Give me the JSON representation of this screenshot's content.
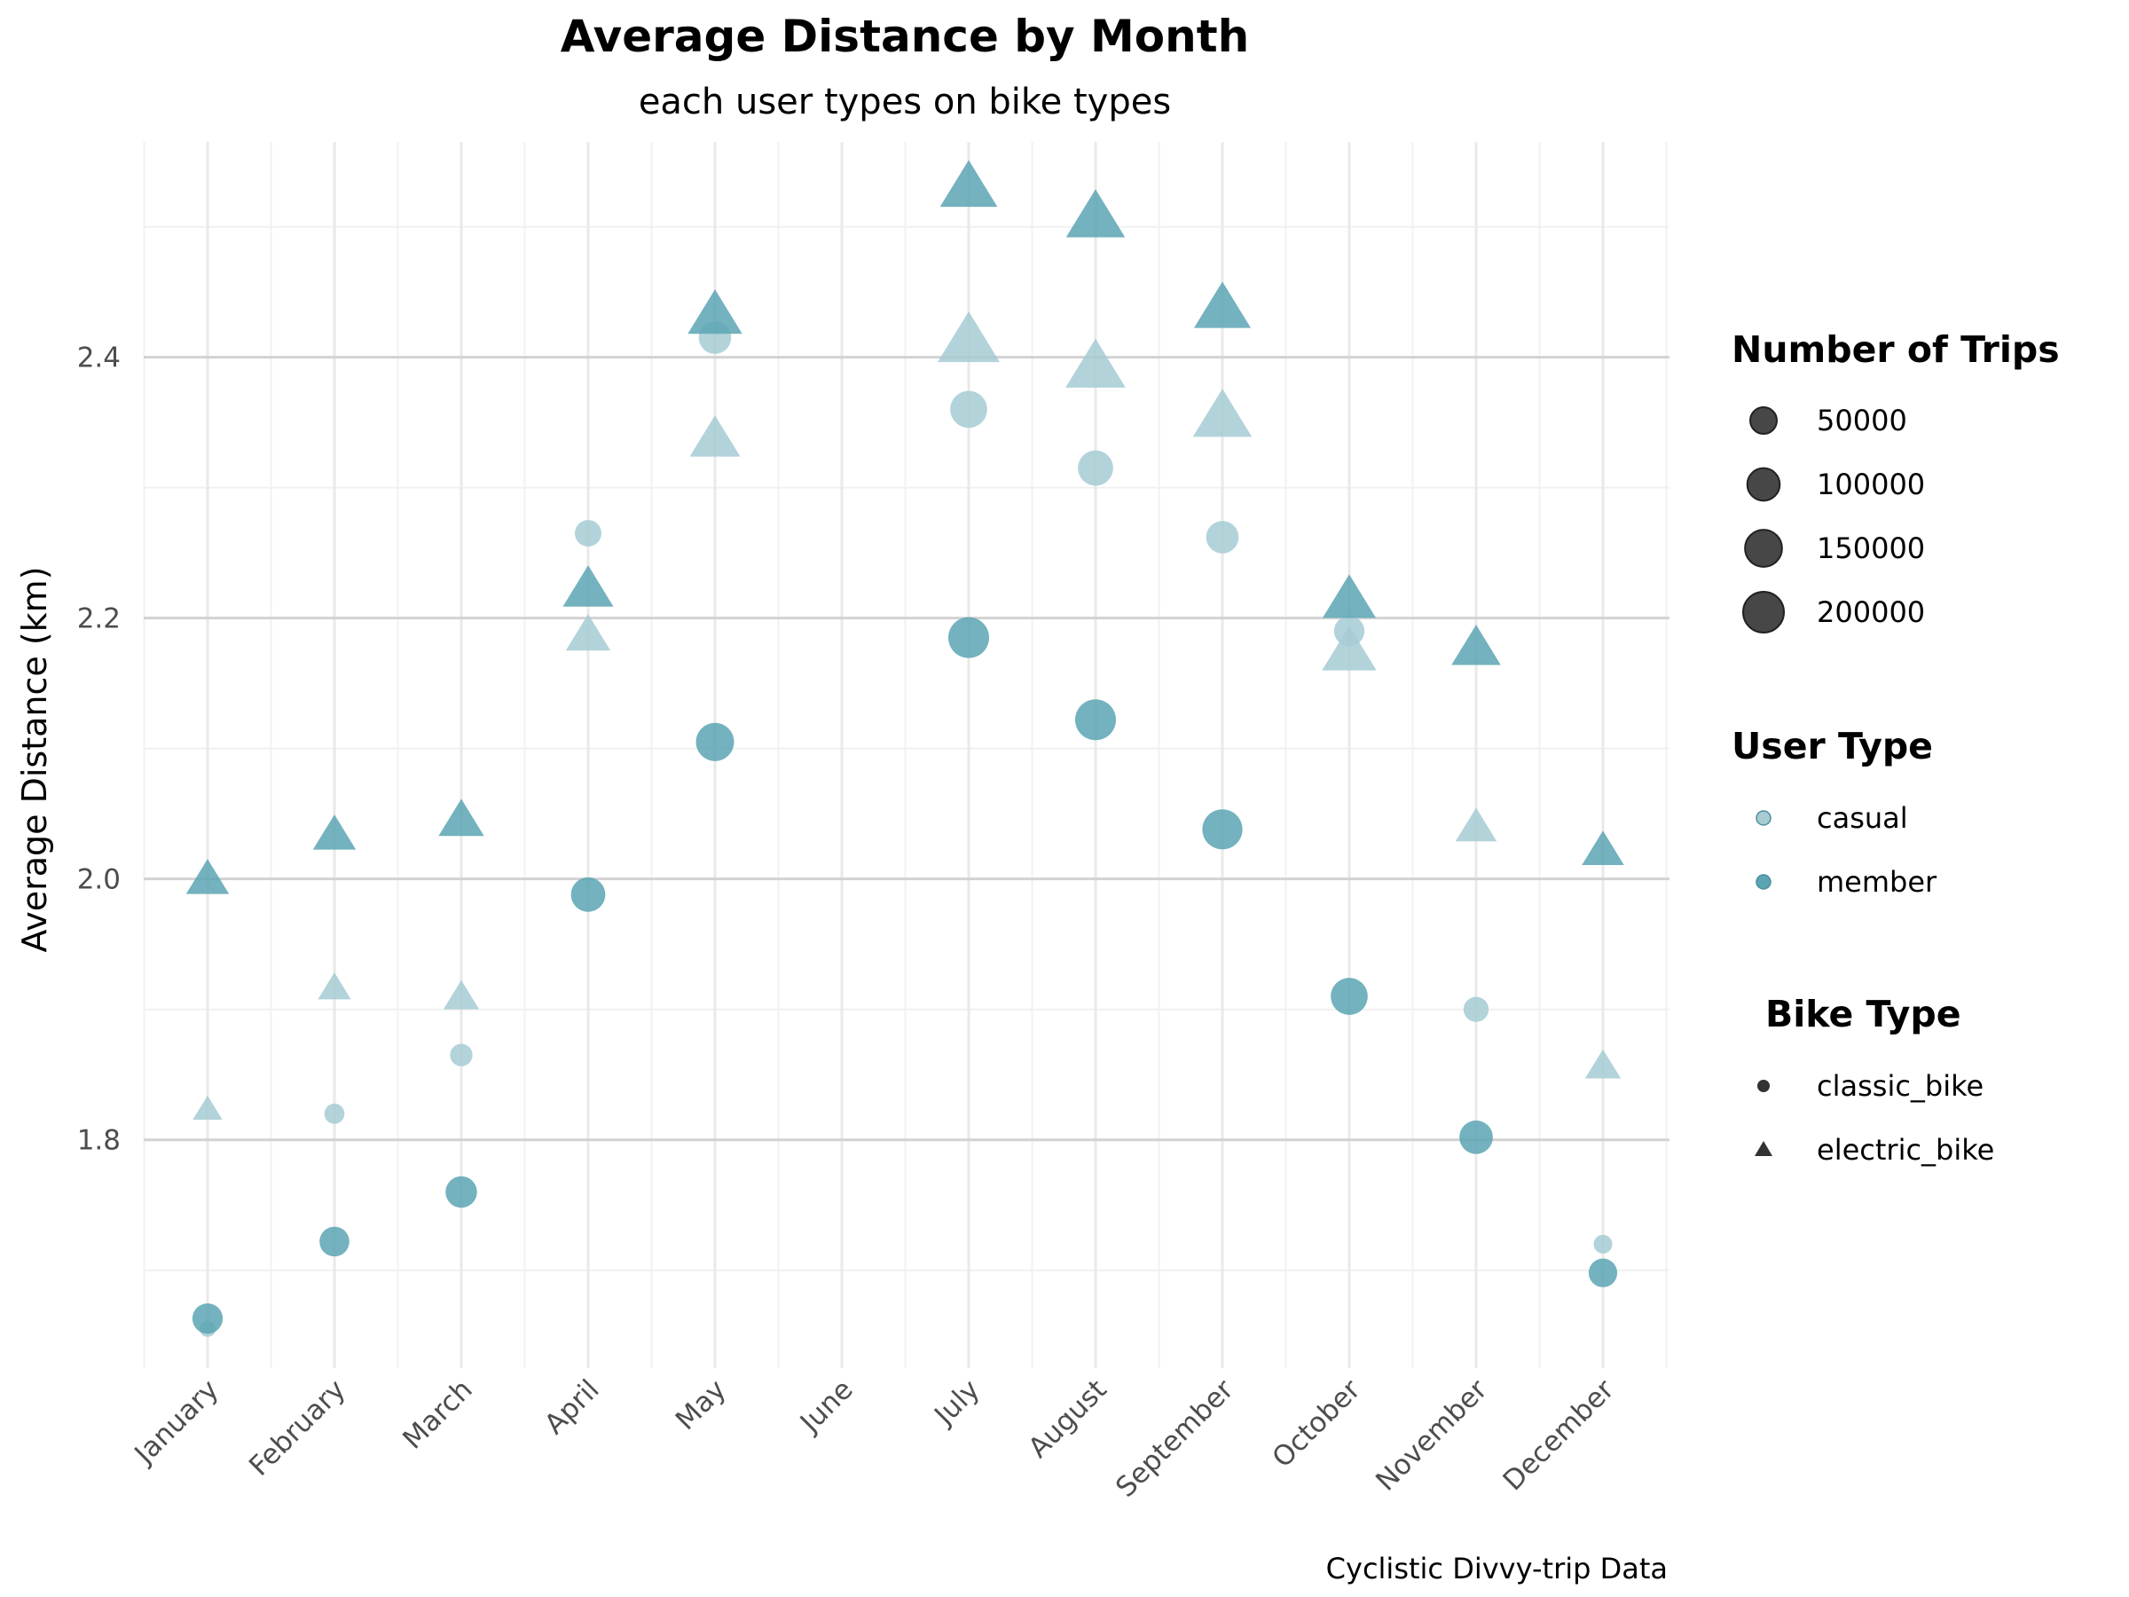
{
  "chart_data": {
    "type": "scatter",
    "title": "Average Distance by Month",
    "subtitle": "each user types on bike types",
    "xlabel": "",
    "ylabel": "Average Distance (km)",
    "caption": "Cyclistic Divvy-trip Data",
    "categories": [
      "January",
      "February",
      "March",
      "April",
      "May",
      "June",
      "July",
      "August",
      "September",
      "October",
      "November",
      "December"
    ],
    "ylim": [
      1.625,
      2.565
    ],
    "yticks": [
      1.8,
      2.0,
      2.2,
      2.4
    ],
    "ytick_labels": [
      "1.8",
      "2.0",
      "2.2",
      "2.4"
    ],
    "grid": true,
    "legend_position": "right",
    "colors": {
      "casual": "#a6cbd3",
      "member": "#5aa5b3"
    },
    "size_legend": {
      "title": "Number of Trips",
      "values": [
        50000,
        100000,
        150000,
        200000
      ],
      "labels": [
        "50000",
        "100000",
        "150000",
        "200000"
      ]
    },
    "color_legend": {
      "title": "User Type",
      "labels": [
        "casual",
        "member"
      ]
    },
    "shape_legend": {
      "title": "Bike Type",
      "labels": [
        "classic_bike",
        "electric_bike"
      ]
    },
    "series": [
      {
        "user_type": "casual",
        "bike_type": "classic_bike",
        "points": [
          {
            "month": "January",
            "distance": 1.655,
            "trips": 3000
          },
          {
            "month": "February",
            "distance": 1.82,
            "trips": 15000
          },
          {
            "month": "March",
            "distance": 1.865,
            "trips": 25000
          },
          {
            "month": "April",
            "distance": 2.265,
            "trips": 50000
          },
          {
            "month": "May",
            "distance": 2.415,
            "trips": 100000
          },
          {
            "month": "July",
            "distance": 2.36,
            "trips": 150000
          },
          {
            "month": "August",
            "distance": 2.315,
            "trips": 130000
          },
          {
            "month": "September",
            "distance": 2.262,
            "trips": 100000
          },
          {
            "month": "October",
            "distance": 2.19,
            "trips": 80000
          },
          {
            "month": "November",
            "distance": 1.9,
            "trips": 40000
          },
          {
            "month": "December",
            "distance": 1.72,
            "trips": 10000
          }
        ]
      },
      {
        "user_type": "member",
        "bike_type": "classic_bike",
        "points": [
          {
            "month": "January",
            "distance": 1.663,
            "trips": 80000
          },
          {
            "month": "February",
            "distance": 1.722,
            "trips": 75000
          },
          {
            "month": "March",
            "distance": 1.76,
            "trips": 90000
          },
          {
            "month": "April",
            "distance": 1.988,
            "trips": 120000
          },
          {
            "month": "May",
            "distance": 2.105,
            "trips": 165000
          },
          {
            "month": "July",
            "distance": 2.185,
            "trips": 200000
          },
          {
            "month": "August",
            "distance": 2.122,
            "trips": 200000
          },
          {
            "month": "September",
            "distance": 2.038,
            "trips": 190000
          },
          {
            "month": "October",
            "distance": 1.91,
            "trips": 150000
          },
          {
            "month": "November",
            "distance": 1.802,
            "trips": 110000
          },
          {
            "month": "December",
            "distance": 1.698,
            "trips": 65000
          }
        ]
      },
      {
        "user_type": "casual",
        "bike_type": "electric_bike",
        "points": [
          {
            "month": "January",
            "distance": 1.822,
            "trips": 15000
          },
          {
            "month": "February",
            "distance": 1.915,
            "trips": 25000
          },
          {
            "month": "March",
            "distance": 1.908,
            "trips": 35000
          },
          {
            "month": "April",
            "distance": 2.185,
            "trips": 80000
          },
          {
            "month": "May",
            "distance": 2.335,
            "trips": 120000
          },
          {
            "month": "July",
            "distance": 2.41,
            "trips": 220000
          },
          {
            "month": "August",
            "distance": 2.39,
            "trips": 200000
          },
          {
            "month": "September",
            "distance": 2.352,
            "trips": 190000
          },
          {
            "month": "October",
            "distance": 2.172,
            "trips": 150000
          },
          {
            "month": "November",
            "distance": 2.038,
            "trips": 60000
          },
          {
            "month": "December",
            "distance": 1.855,
            "trips": 35000
          }
        ]
      },
      {
        "user_type": "member",
        "bike_type": "electric_bike",
        "points": [
          {
            "month": "January",
            "distance": 1.998,
            "trips": 70000
          },
          {
            "month": "February",
            "distance": 2.032,
            "trips": 70000
          },
          {
            "month": "March",
            "distance": 2.043,
            "trips": 85000
          },
          {
            "month": "April",
            "distance": 2.22,
            "trips": 120000
          },
          {
            "month": "May",
            "distance": 2.43,
            "trips": 150000
          },
          {
            "month": "July",
            "distance": 2.528,
            "trips": 175000
          },
          {
            "month": "August",
            "distance": 2.505,
            "trips": 190000
          },
          {
            "month": "September",
            "distance": 2.435,
            "trips": 170000
          },
          {
            "month": "October",
            "distance": 2.212,
            "trips": 140000
          },
          {
            "month": "November",
            "distance": 2.175,
            "trips": 110000
          },
          {
            "month": "December",
            "distance": 2.02,
            "trips": 65000
          }
        ]
      }
    ]
  }
}
